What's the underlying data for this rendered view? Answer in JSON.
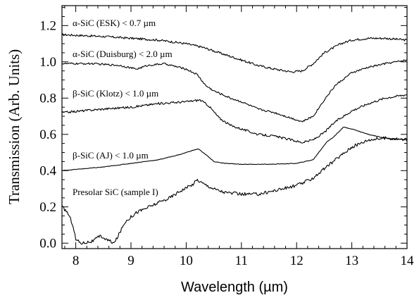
{
  "chart_data": {
    "type": "line",
    "title": "",
    "xlabel": "Wavelength (µm)",
    "ylabel": "Transmission (Arb. Units)",
    "xlim": [
      7.75,
      14.0
    ],
    "ylim": [
      -0.03,
      1.31
    ],
    "x_ticks": [
      "8",
      "9",
      "10",
      "11",
      "12",
      "13",
      "14"
    ],
    "y_ticks": [
      "0.0",
      "0.2",
      "0.4",
      "0.6",
      "0.8",
      "1.0",
      "1.2"
    ],
    "grid": false,
    "series": [
      {
        "name": "α-SiC (ESK) < 0.7 µm",
        "x": [
          7.75,
          8.5,
          9.0,
          9.5,
          10.0,
          10.3,
          10.5,
          10.8,
          11.0,
          11.3,
          11.6,
          11.9,
          12.1,
          12.3,
          12.5,
          12.8,
          13.0,
          13.3,
          13.6,
          14.0
        ],
        "y": [
          1.15,
          1.14,
          1.13,
          1.12,
          1.1,
          1.08,
          1.06,
          1.03,
          1.01,
          0.98,
          0.96,
          0.945,
          0.95,
          0.99,
          1.05,
          1.1,
          1.12,
          1.13,
          1.13,
          1.12
        ]
      },
      {
        "name": "α-SiC (Duisburg) < 2.0 µm",
        "x": [
          7.75,
          8.3,
          8.8,
          9.1,
          9.3,
          9.6,
          10.0,
          10.2,
          10.35,
          10.5,
          10.8,
          11.0,
          11.3,
          11.6,
          11.9,
          12.1,
          12.3,
          12.5,
          12.7,
          13.0,
          13.3,
          13.6,
          14.0
        ],
        "y": [
          0.99,
          0.99,
          0.98,
          0.96,
          0.98,
          0.99,
          0.96,
          0.93,
          0.87,
          0.84,
          0.8,
          0.78,
          0.74,
          0.72,
          0.69,
          0.67,
          0.7,
          0.79,
          0.87,
          0.94,
          0.97,
          0.99,
          1.01
        ]
      },
      {
        "name": "β-SiC (Klotz) < 1.0 µm",
        "x": [
          7.75,
          8.5,
          9.0,
          9.5,
          10.0,
          10.25,
          10.4,
          10.6,
          10.8,
          11.0,
          11.3,
          11.6,
          11.9,
          12.1,
          12.3,
          12.5,
          12.7,
          13.0,
          13.3,
          13.6,
          14.0
        ],
        "y": [
          0.72,
          0.74,
          0.75,
          0.77,
          0.78,
          0.79,
          0.76,
          0.69,
          0.65,
          0.63,
          0.6,
          0.59,
          0.57,
          0.555,
          0.57,
          0.61,
          0.67,
          0.73,
          0.77,
          0.8,
          0.82
        ]
      },
      {
        "name": "β-SiC (AJ) < 1.0 µm",
        "x": [
          7.75,
          8.5,
          9.0,
          9.5,
          9.9,
          10.1,
          10.22,
          10.35,
          10.5,
          10.7,
          11.0,
          11.5,
          12.0,
          12.3,
          12.45,
          12.55,
          12.65,
          12.75,
          12.85,
          13.0,
          13.3,
          13.6,
          14.0
        ],
        "y": [
          0.4,
          0.42,
          0.44,
          0.46,
          0.49,
          0.51,
          0.52,
          0.49,
          0.45,
          0.44,
          0.435,
          0.435,
          0.44,
          0.46,
          0.52,
          0.56,
          0.58,
          0.61,
          0.64,
          0.63,
          0.6,
          0.58,
          0.57
        ]
      },
      {
        "name": "Presolar SiC (sample I)",
        "x": [
          7.75,
          7.85,
          7.95,
          8.0,
          8.1,
          8.3,
          8.45,
          8.55,
          8.7,
          8.9,
          9.1,
          9.4,
          9.7,
          9.9,
          10.1,
          10.2,
          10.3,
          10.5,
          10.7,
          11.0,
          11.3,
          11.6,
          11.9,
          12.1,
          12.3,
          12.5,
          12.7,
          13.0,
          13.3,
          13.6,
          14.0
        ],
        "y": [
          0.2,
          0.17,
          0.1,
          0.02,
          0.0,
          0.01,
          0.04,
          0.02,
          0.0,
          0.12,
          0.17,
          0.21,
          0.25,
          0.29,
          0.32,
          0.35,
          0.33,
          0.3,
          0.28,
          0.27,
          0.27,
          0.29,
          0.31,
          0.33,
          0.36,
          0.41,
          0.46,
          0.53,
          0.57,
          0.58,
          0.57
        ]
      }
    ]
  }
}
